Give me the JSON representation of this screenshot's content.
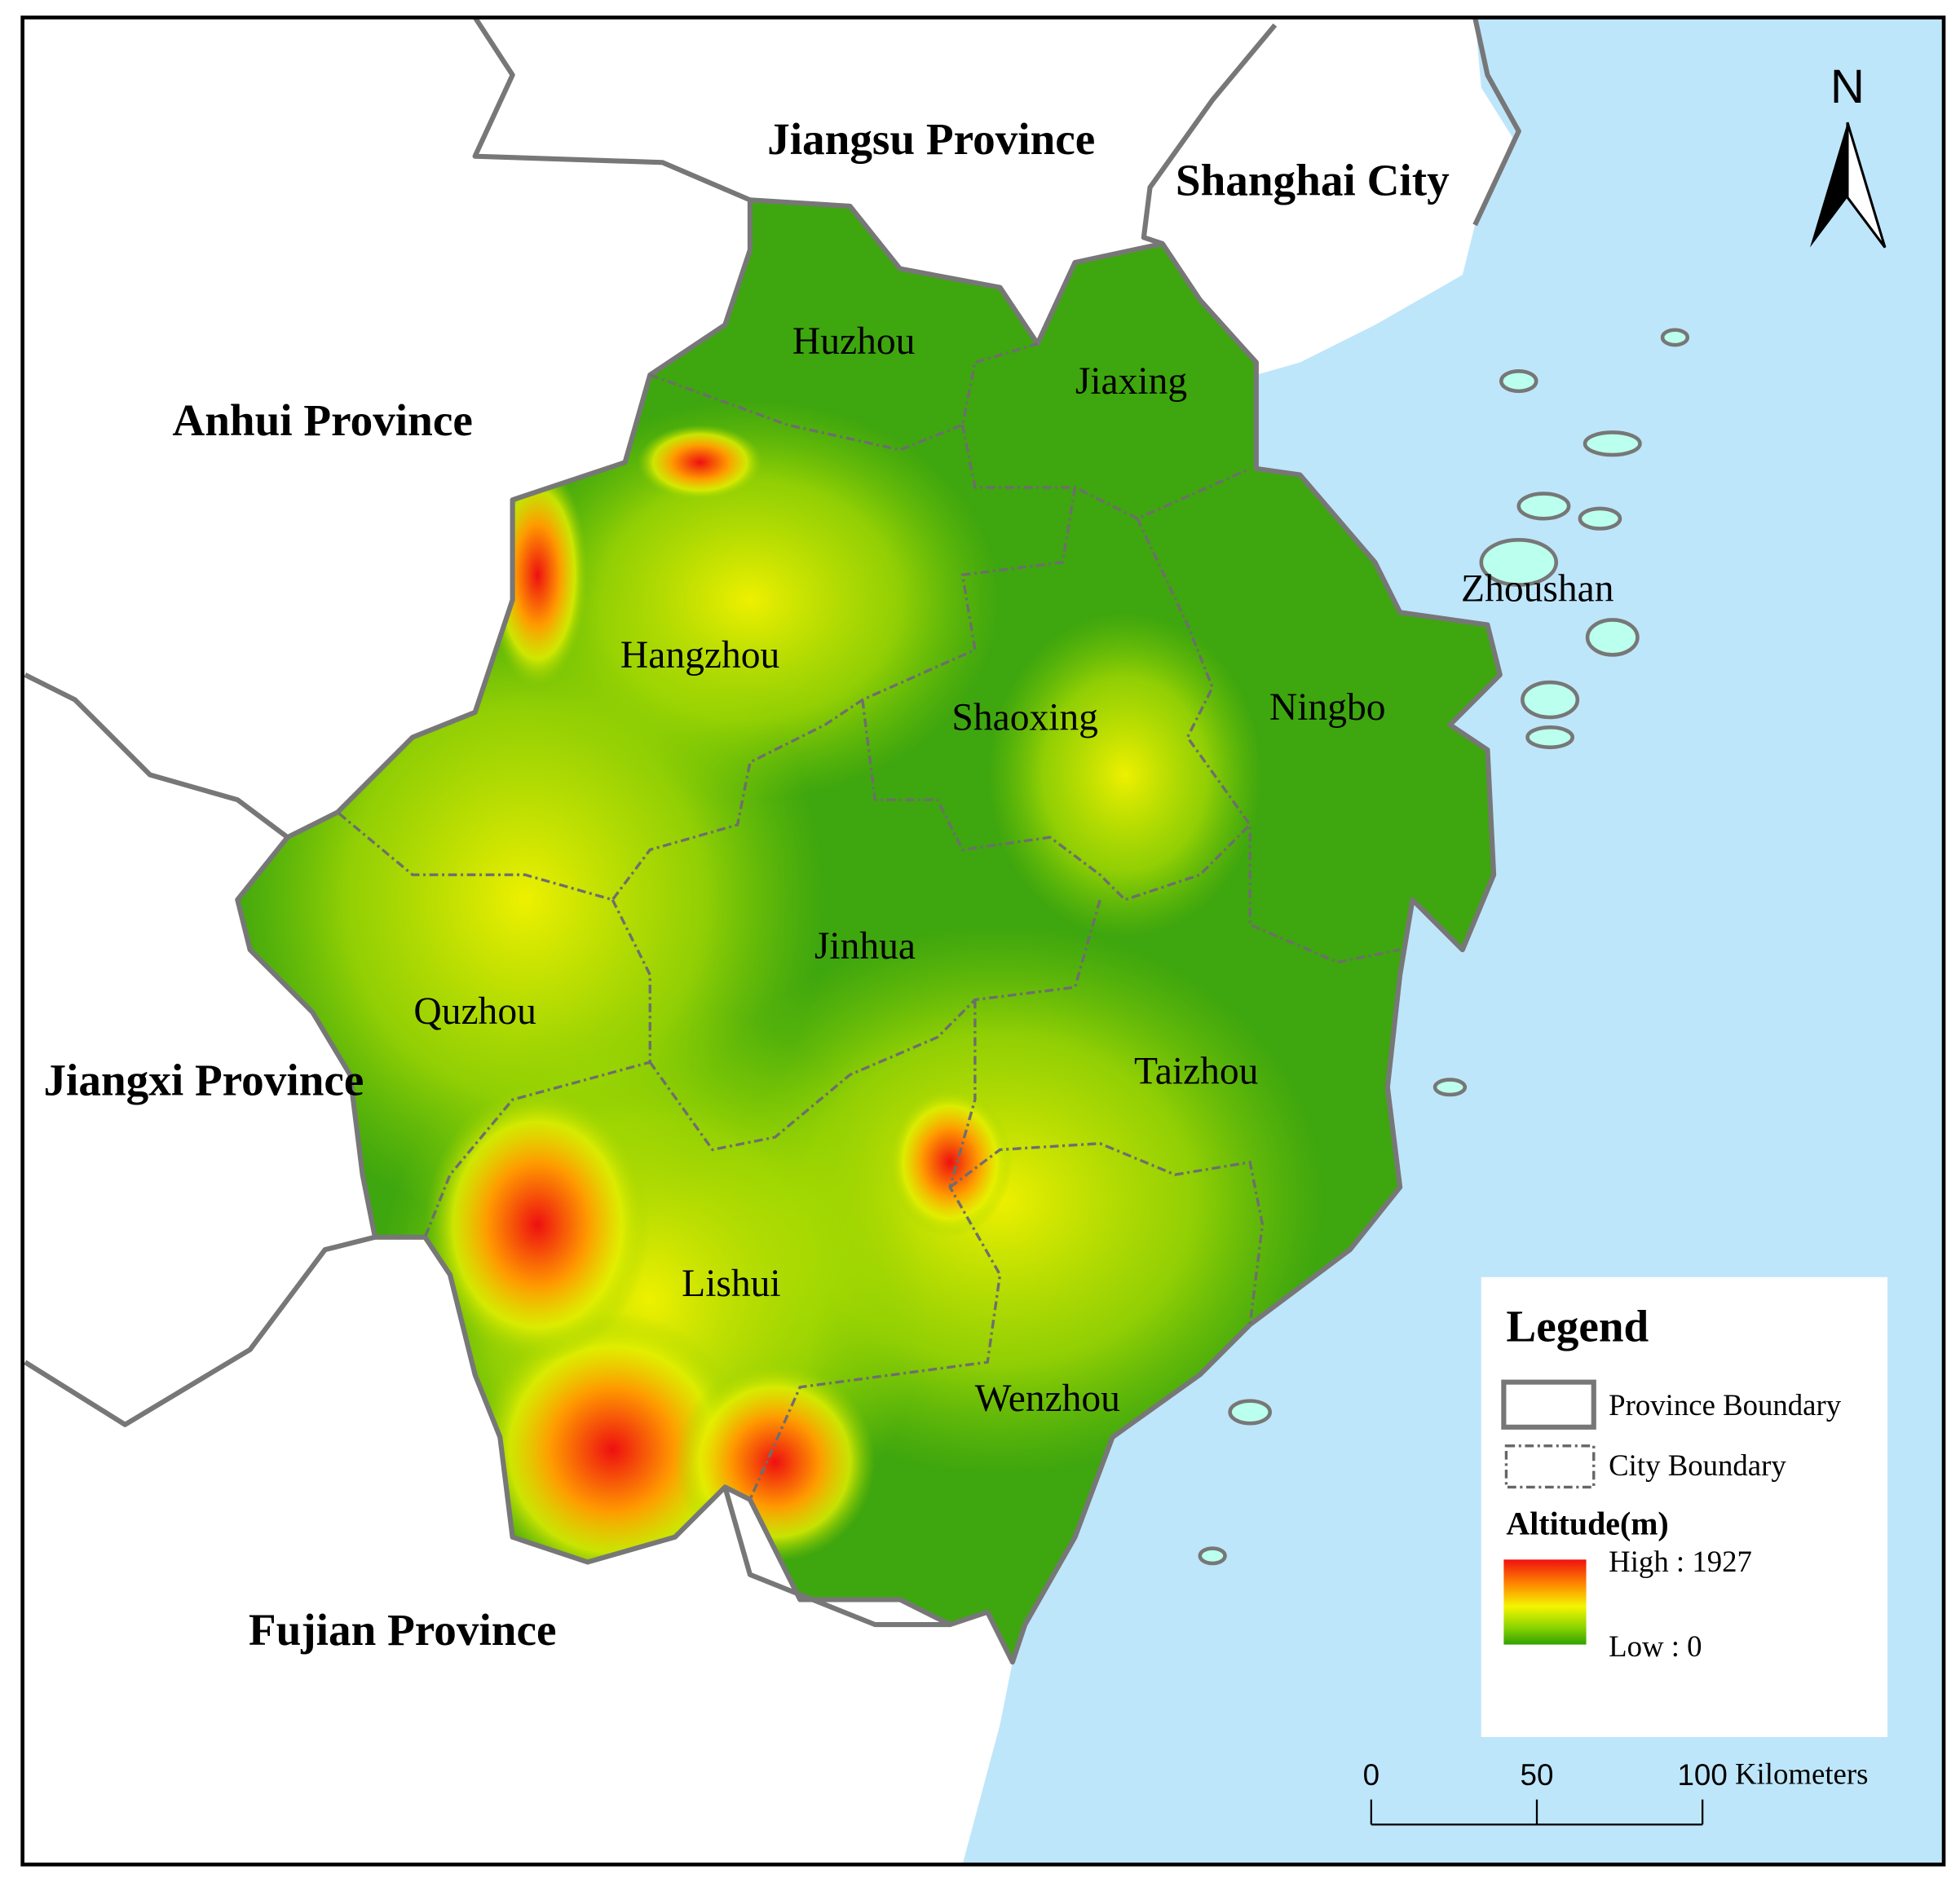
{
  "map": {
    "provinces": [
      "Jiangsu Province",
      "Shanghai City",
      "Anhui Province",
      "Jiangxi Province",
      "Fujian Province"
    ],
    "cities": [
      "Huzhou",
      "Jiaxing",
      "Hangzhou",
      "Shaoxing",
      "Ningbo",
      "Zhoushan",
      "Quzhou",
      "Jinhua",
      "Taizhou",
      "Lishui",
      "Wenzhou"
    ],
    "north_arrow": "N"
  },
  "legend": {
    "title": "Legend",
    "items": [
      "Province Boundary",
      "City Boundary"
    ],
    "altitude_title": "Altitude(m)",
    "high": "High : 1927",
    "low": "Low : 0"
  },
  "scale_bar": {
    "ticks": [
      0,
      50,
      100
    ],
    "unit": "Kilometers"
  }
}
